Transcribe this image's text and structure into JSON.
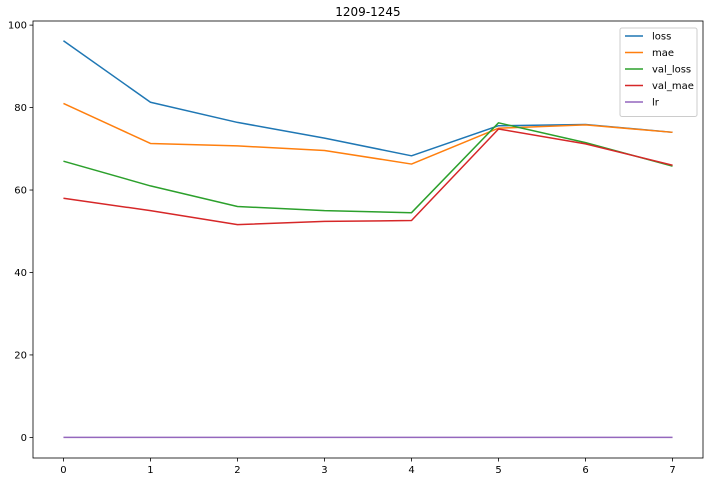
{
  "chart_data": {
    "type": "line",
    "title": "1209-1245",
    "xlabel": "",
    "ylabel": "",
    "x": [
      0,
      1,
      2,
      3,
      4,
      5,
      6,
      7
    ],
    "xlim": [
      -0.35,
      7.35
    ],
    "ylim": [
      -5,
      101
    ],
    "xticks": [
      0,
      1,
      2,
      3,
      4,
      5,
      6,
      7
    ],
    "yticks": [
      0,
      20,
      40,
      60,
      80,
      100
    ],
    "grid": false,
    "legend_position": "top-right",
    "series": [
      {
        "name": "loss",
        "color": "#1f77b4",
        "values": [
          96.2,
          81.3,
          76.4,
          72.6,
          68.3,
          75.6,
          75.9,
          74.0
        ]
      },
      {
        "name": "mae",
        "color": "#ff7f0e",
        "values": [
          81.0,
          71.3,
          70.7,
          69.6,
          66.3,
          75.0,
          75.8,
          74.0
        ]
      },
      {
        "name": "val_loss",
        "color": "#2ca02c",
        "values": [
          67.0,
          61.0,
          56.0,
          55.0,
          54.5,
          76.3,
          71.5,
          65.8
        ]
      },
      {
        "name": "val_mae",
        "color": "#d62728",
        "values": [
          58.0,
          55.0,
          51.6,
          52.4,
          52.6,
          74.8,
          71.2,
          66.0
        ]
      },
      {
        "name": "lr",
        "color": "#9467bd",
        "values": [
          0.001,
          0.001,
          0.001,
          0.001,
          0.001,
          0.001,
          0.001,
          0.001
        ]
      }
    ]
  }
}
